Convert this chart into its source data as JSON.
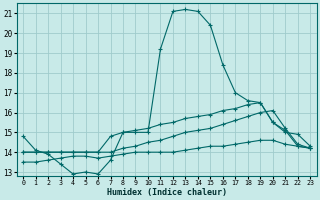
{
  "xlabel": "Humidex (Indice chaleur)",
  "background_color": "#c8eae8",
  "grid_color": "#a0cccc",
  "line_color": "#006868",
  "xlim": [
    -0.5,
    23.5
  ],
  "ylim": [
    12.8,
    21.5
  ],
  "xticks": [
    0,
    1,
    2,
    3,
    4,
    5,
    6,
    7,
    8,
    9,
    10,
    11,
    12,
    13,
    14,
    15,
    16,
    17,
    18,
    19,
    20,
    21,
    22,
    23
  ],
  "yticks": [
    13,
    14,
    15,
    16,
    17,
    18,
    19,
    20,
    21
  ],
  "line1_x": [
    0,
    1,
    2,
    3,
    4,
    5,
    6,
    7,
    8,
    9,
    10,
    11,
    12,
    13,
    14,
    15,
    16,
    17,
    18,
    19,
    20,
    21,
    22,
    23
  ],
  "line1_y": [
    14.8,
    14.1,
    13.9,
    13.4,
    12.9,
    13.0,
    12.9,
    13.6,
    15.0,
    15.0,
    15.0,
    19.2,
    21.1,
    21.2,
    21.1,
    20.4,
    18.4,
    17.0,
    16.6,
    16.5,
    15.5,
    15.0,
    14.9,
    14.3
  ],
  "line2_x": [
    0,
    1,
    2,
    3,
    4,
    5,
    6,
    7,
    8,
    9,
    10,
    11,
    12,
    13,
    14,
    15,
    16,
    17,
    18,
    19,
    20,
    21,
    22,
    23
  ],
  "line2_y": [
    14.0,
    14.0,
    14.0,
    14.0,
    14.0,
    14.0,
    14.0,
    14.8,
    15.0,
    15.1,
    15.2,
    15.4,
    15.5,
    15.7,
    15.8,
    15.9,
    16.1,
    16.2,
    16.4,
    16.5,
    15.5,
    15.1,
    14.3,
    14.2
  ],
  "line3_x": [
    0,
    1,
    2,
    3,
    4,
    5,
    6,
    7,
    8,
    9,
    10,
    11,
    12,
    13,
    14,
    15,
    16,
    17,
    18,
    19,
    20,
    21,
    22,
    23
  ],
  "line3_y": [
    14.0,
    14.0,
    14.0,
    14.0,
    14.0,
    14.0,
    14.0,
    14.0,
    14.2,
    14.3,
    14.5,
    14.6,
    14.8,
    15.0,
    15.1,
    15.2,
    15.4,
    15.6,
    15.8,
    16.0,
    16.1,
    15.2,
    14.4,
    14.2
  ],
  "line4_x": [
    0,
    1,
    2,
    3,
    4,
    5,
    6,
    7,
    8,
    9,
    10,
    11,
    12,
    13,
    14,
    15,
    16,
    17,
    18,
    19,
    20,
    21,
    22,
    23
  ],
  "line4_y": [
    13.5,
    13.5,
    13.6,
    13.7,
    13.8,
    13.8,
    13.7,
    13.8,
    13.9,
    14.0,
    14.0,
    14.0,
    14.0,
    14.1,
    14.2,
    14.3,
    14.3,
    14.4,
    14.5,
    14.6,
    14.6,
    14.4,
    14.3,
    14.2
  ]
}
